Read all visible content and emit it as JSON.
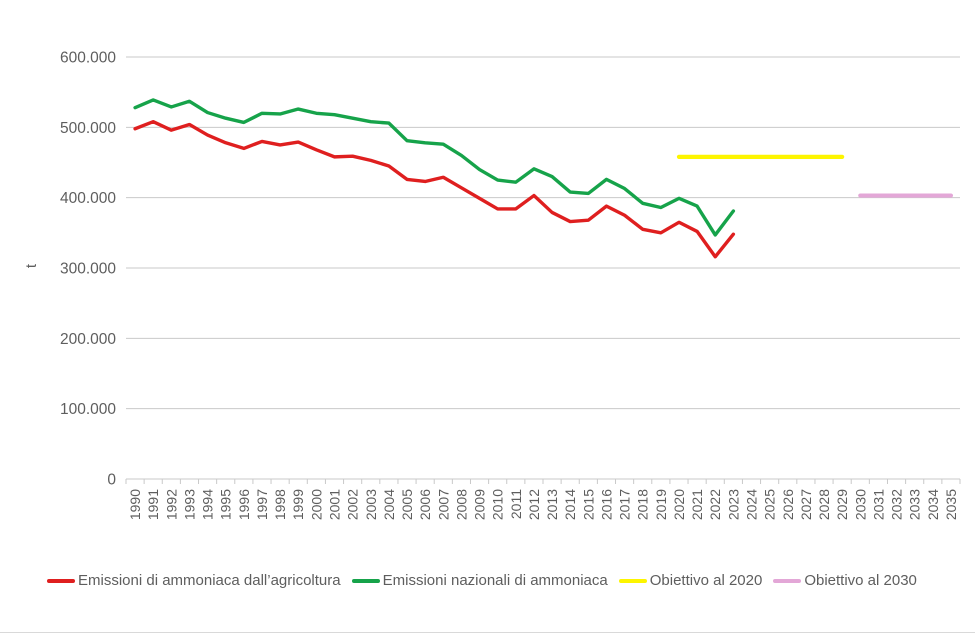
{
  "colors": {
    "grid": "#c9c9c9",
    "axis_text": "#5e5e5e",
    "series_agriculture": "#df1f1f",
    "series_national": "#16a34a",
    "target_2020": "#fdf500",
    "target_2030": "#e3a7d7"
  },
  "axis": {
    "y_title": "t",
    "y_ticks": [
      {
        "label": "0",
        "value": 0
      },
      {
        "label": "100.000",
        "value": 100000
      },
      {
        "label": "200.000",
        "value": 200000
      },
      {
        "label": "300.000",
        "value": 300000
      },
      {
        "label": "400.000",
        "value": 400000
      },
      {
        "label": "500.000",
        "value": 500000
      },
      {
        "label": "600.000",
        "value": 600000
      }
    ],
    "x_labels": [
      "1990",
      "1991",
      "1992",
      "1993",
      "1994",
      "1995",
      "1996",
      "1997",
      "1998",
      "1999",
      "2000",
      "2001",
      "2002",
      "2003",
      "2004",
      "2005",
      "2006",
      "2007",
      "2008",
      "2009",
      "2010",
      "2011",
      "2012",
      "2013",
      "2014",
      "2015",
      "2016",
      "2017",
      "2018",
      "2019",
      "2020",
      "2021",
      "2022",
      "2023",
      "2024",
      "2025",
      "2026",
      "2027",
      "2028",
      "2029",
      "2030",
      "2031",
      "2032",
      "2033",
      "2034",
      "2035"
    ]
  },
  "chart_data": {
    "type": "line",
    "title": "",
    "xlabel": "",
    "ylabel": "t",
    "ylim": [
      0,
      600000
    ],
    "x_range": [
      1990,
      2035
    ],
    "grid": true,
    "legend_position": "bottom",
    "x": [
      1990,
      1991,
      1992,
      1993,
      1994,
      1995,
      1996,
      1997,
      1998,
      1999,
      2000,
      2001,
      2002,
      2003,
      2004,
      2005,
      2006,
      2007,
      2008,
      2009,
      2010,
      2011,
      2012,
      2013,
      2014,
      2015,
      2016,
      2017,
      2018,
      2019,
      2020,
      2021,
      2022,
      2023
    ],
    "series": [
      {
        "name": "Emissioni di ammoniaca dall’agricoltura",
        "color": "#df1f1f",
        "values": [
          498000,
          508000,
          496000,
          504000,
          489000,
          478000,
          470000,
          480000,
          475000,
          479000,
          468000,
          458000,
          459000,
          453000,
          445000,
          426000,
          423000,
          429000,
          414000,
          399000,
          384000,
          384000,
          403000,
          379000,
          366000,
          368000,
          388000,
          375000,
          355000,
          350000,
          365000,
          352000,
          316000,
          348000
        ]
      },
      {
        "name": "Emissioni nazionali di ammoniaca",
        "color": "#16a34a",
        "values": [
          528000,
          539000,
          529000,
          537000,
          521000,
          513000,
          507000,
          520000,
          519000,
          526000,
          520000,
          518000,
          513000,
          508000,
          506000,
          481000,
          478000,
          476000,
          460000,
          440000,
          425000,
          422000,
          441000,
          430000,
          408000,
          406000,
          426000,
          413000,
          392000,
          386000,
          399000,
          388000,
          347000,
          381000
        ]
      }
    ],
    "targets": [
      {
        "name": "Obiettivo al 2020",
        "color": "#fdf500",
        "value": 458000,
        "from_year": 2020,
        "to_year": 2029
      },
      {
        "name": "Obiettivo al 2030",
        "color": "#e3a7d7",
        "value": 403000,
        "from_year": 2030,
        "to_year": 2035
      }
    ]
  },
  "legend": {
    "items": [
      {
        "label": "Emissioni di ammoniaca dall’agricoltura",
        "color": "#df1f1f"
      },
      {
        "label": "Emissioni nazionali di ammoniaca",
        "color": "#16a34a"
      },
      {
        "label": "Obiettivo al 2020",
        "color": "#fdf500"
      },
      {
        "label": "Obiettivo al 2030",
        "color": "#e3a7d7"
      }
    ]
  }
}
